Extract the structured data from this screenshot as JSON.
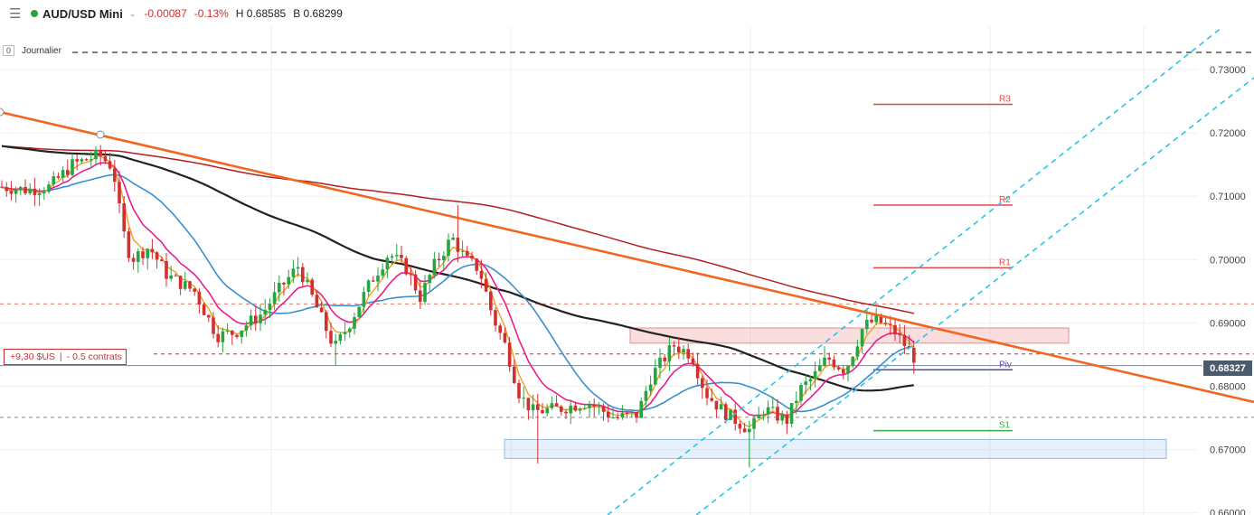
{
  "header": {
    "symbol": "AUD/USD Mini",
    "change": "-0.00087",
    "change_pct": "-0.13%",
    "high_label": "H 0.68585",
    "bid_label": "B 0.68299",
    "status_color": "#2e9e3e"
  },
  "timeframe": {
    "zoom": "0",
    "label": "Journalier"
  },
  "position": {
    "pnl": "+9,30 $US",
    "size": "- 0.5 contrats"
  },
  "current_price": "0.68327",
  "pivots": {
    "r3": "R3",
    "r2": "R2",
    "r1": "R1",
    "piv": "Piv",
    "s1": "S1"
  },
  "chart_data": {
    "type": "candlestick",
    "y_ticks": [
      "0.73000",
      "0.72000",
      "0.71000",
      "0.70000",
      "0.69000",
      "0.68000",
      "0.67000",
      "0.66000"
    ],
    "ylim": [
      0.66,
      0.734
    ],
    "pivot_levels": {
      "R3": 0.7245,
      "R2": 0.7086,
      "R1": 0.6987,
      "Piv": 0.6826,
      "S1": 0.673
    },
    "current_price": 0.68327,
    "order_level": 0.6851,
    "resistance_zone": [
      0.6868,
      0.6892
    ],
    "support_zone": [
      0.6686,
      0.6716
    ],
    "colors": {
      "up": "#26a641",
      "down": "#d32f2f",
      "sma200": "#b02020",
      "sma100": "#222222",
      "sma50": "#3a8fd0",
      "ema20": "#e91e8c",
      "ema9": "#f0a020",
      "trend": "#f26522",
      "channel": "#29c4e8"
    }
  }
}
